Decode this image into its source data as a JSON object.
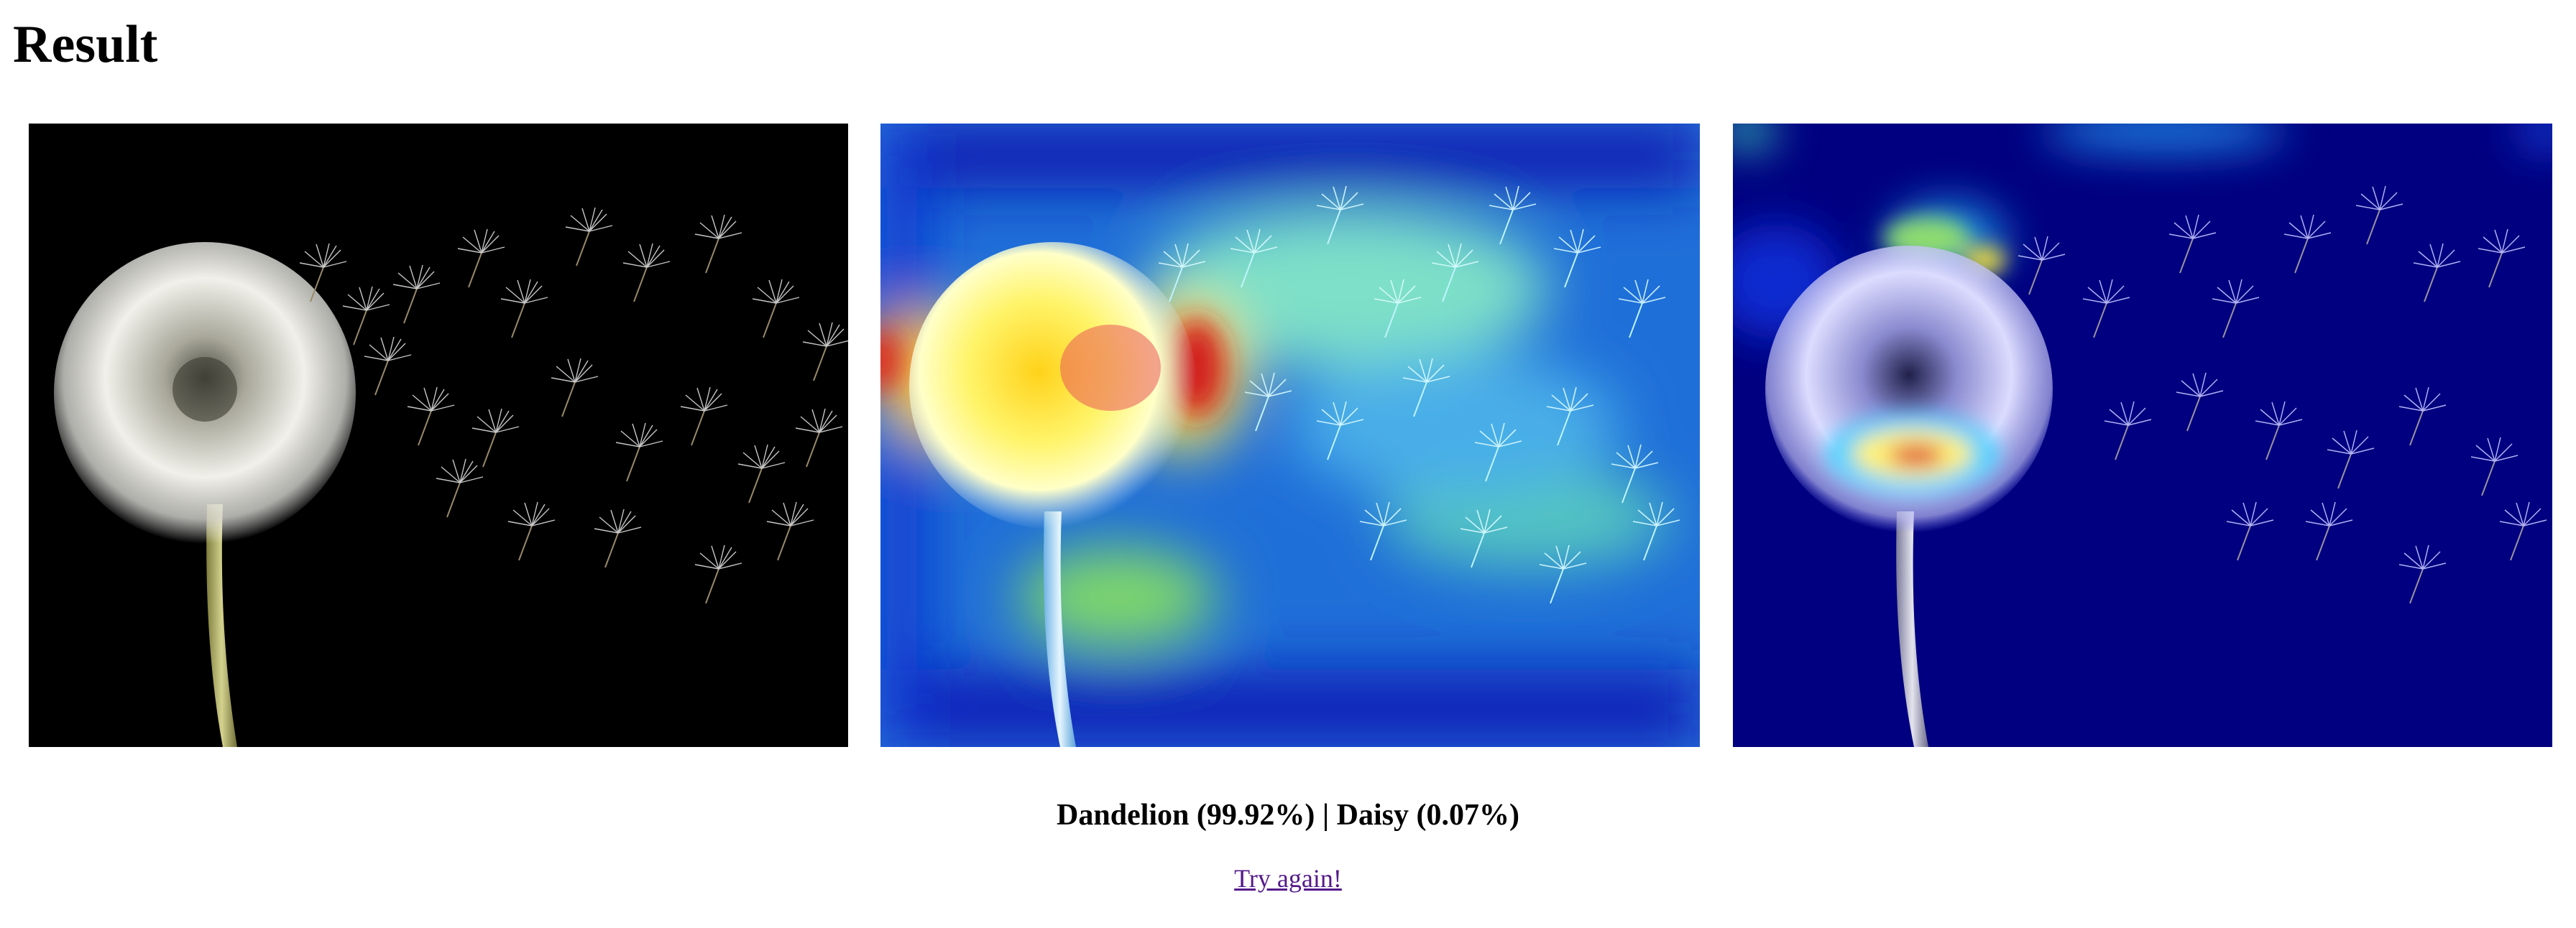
{
  "page": {
    "title": "Result"
  },
  "images": [
    {
      "name": "original-image",
      "overlay": "none"
    },
    {
      "name": "heatmap-overlay-image",
      "overlay": "jet-heatmap"
    },
    {
      "name": "gradcam-overlay-image",
      "overlay": "focused-heatmap"
    }
  ],
  "prediction": {
    "text": "Dandelion (99.92%) | Daisy (0.07%)"
  },
  "link": {
    "label": "Try again!"
  },
  "colors": {
    "link": "#551a8b",
    "background": "#ffffff",
    "image_bg": "#000000",
    "heatmap_low": "#00007f",
    "heatmap_mid": "#2a8fe0",
    "heatmap_high": "#d9201a"
  }
}
